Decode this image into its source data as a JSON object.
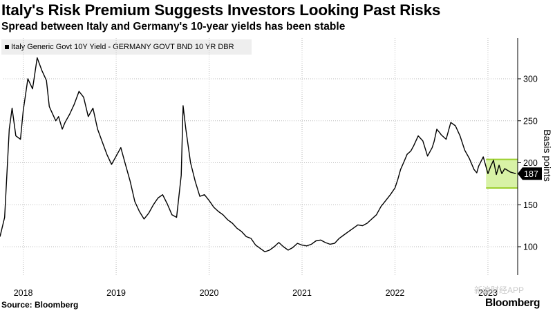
{
  "header": {
    "title": "Italy's Risk Premium Suggests Investors Looking Past Risks",
    "subtitle": "Spread between Italy and Germany's 10-year yields has been stable"
  },
  "footer": {
    "source": "Source: Bloomberg",
    "brand": "Bloomberg",
    "watermark": "新浪财经APP"
  },
  "chart_data": {
    "type": "line",
    "title": "Italy's Risk Premium Suggests Investors Looking Past Risks",
    "subtitle": "Spread between Italy and Germany's 10-year yields has been stable",
    "xlabel": "",
    "ylabel": "Basis points",
    "y_axis_side": "right",
    "ylim": [
      70,
      340
    ],
    "yticks": [
      100,
      150,
      200,
      250,
      300
    ],
    "xlim": [
      2017.75,
      2023.32
    ],
    "xticks": [
      {
        "label": "2018",
        "pos": 2018.0
      },
      {
        "label": "2019",
        "pos": 2019.0
      },
      {
        "label": "2020",
        "pos": 2020.0
      },
      {
        "label": "2021",
        "pos": 2021.0
      },
      {
        "label": "2022",
        "pos": 2022.0
      },
      {
        "label": "2023",
        "pos": 2023.0
      }
    ],
    "grid": "dotted",
    "legend": {
      "placement": "top-left",
      "label": "Italy Generic Govt 10Y Yield - GERMANY GOVT BND 10 YR DBR"
    },
    "last_value_label": "187",
    "highlight_band": {
      "x_start": 2022.98,
      "x_end": 2023.32,
      "y_low": 170,
      "y_high": 204,
      "color": "#d8f2a6",
      "border": "#9ccf2e"
    },
    "series": [
      {
        "name": "Italy Generic Govt 10Y Yield - GERMANY GOVT BND 10 YR DBR",
        "color": "#000000",
        "x": [
          2017.75,
          2017.8,
          2017.85,
          2017.88,
          2017.92,
          2017.97,
          2018.0,
          2018.05,
          2018.1,
          2018.15,
          2018.2,
          2018.25,
          2018.28,
          2018.3,
          2018.35,
          2018.38,
          2018.42,
          2018.45,
          2018.5,
          2018.55,
          2018.6,
          2018.65,
          2018.7,
          2018.75,
          2018.8,
          2018.85,
          2018.9,
          2018.95,
          2019.0,
          2019.05,
          2019.1,
          2019.15,
          2019.2,
          2019.25,
          2019.3,
          2019.35,
          2019.4,
          2019.45,
          2019.5,
          2019.55,
          2019.6,
          2019.65,
          2019.7,
          2019.72,
          2019.75,
          2019.8,
          2019.85,
          2019.9,
          2019.95,
          2020.0,
          2020.05,
          2020.1,
          2020.15,
          2020.2,
          2020.25,
          2020.3,
          2020.35,
          2020.4,
          2020.45,
          2020.5,
          2020.55,
          2020.6,
          2020.65,
          2020.7,
          2020.75,
          2020.8,
          2020.85,
          2020.9,
          2020.95,
          2021.0,
          2021.05,
          2021.1,
          2021.15,
          2021.2,
          2021.25,
          2021.3,
          2021.35,
          2021.4,
          2021.45,
          2021.5,
          2021.55,
          2021.6,
          2021.65,
          2021.7,
          2021.75,
          2021.8,
          2021.85,
          2021.9,
          2021.95,
          2022.0,
          2022.03,
          2022.06,
          2022.1,
          2022.13,
          2022.17,
          2022.2,
          2022.25,
          2022.3,
          2022.35,
          2022.4,
          2022.42,
          2022.45,
          2022.48,
          2022.5,
          2022.55,
          2022.6,
          2022.65,
          2022.7,
          2022.75,
          2022.8,
          2022.85,
          2022.88,
          2022.9,
          2022.95,
          2023.0,
          2023.03,
          2023.06,
          2023.09,
          2023.12,
          2023.15,
          2023.18,
          2023.21,
          2023.24,
          2023.27,
          2023.3
        ],
        "values": [
          112,
          135,
          240,
          265,
          232,
          228,
          262,
          300,
          288,
          325,
          310,
          298,
          267,
          262,
          250,
          255,
          240,
          248,
          258,
          270,
          285,
          278,
          255,
          265,
          240,
          225,
          210,
          198,
          208,
          218,
          198,
          178,
          154,
          142,
          133,
          140,
          150,
          158,
          162,
          151,
          138,
          135,
          185,
          268,
          240,
          200,
          178,
          160,
          162,
          155,
          147,
          142,
          138,
          132,
          128,
          122,
          118,
          112,
          110,
          102,
          98,
          94,
          96,
          100,
          105,
          100,
          96,
          99,
          104,
          102,
          101,
          103,
          107,
          108,
          105,
          103,
          104,
          110,
          114,
          118,
          122,
          126,
          125,
          128,
          133,
          138,
          148,
          155,
          162,
          170,
          180,
          192,
          202,
          210,
          214,
          220,
          232,
          226,
          208,
          218,
          225,
          240,
          236,
          233,
          228,
          248,
          244,
          232,
          215,
          205,
          192,
          188,
          196,
          207,
          187,
          196,
          203,
          186,
          197,
          187,
          193,
          191,
          189,
          188,
          187
        ]
      }
    ]
  }
}
